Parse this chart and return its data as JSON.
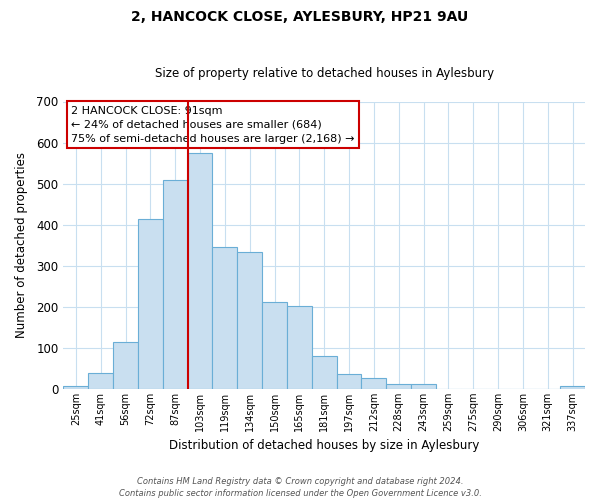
{
  "title": "2, HANCOCK CLOSE, AYLESBURY, HP21 9AU",
  "subtitle": "Size of property relative to detached houses in Aylesbury",
  "xlabel": "Distribution of detached houses by size in Aylesbury",
  "ylabel": "Number of detached properties",
  "bar_labels": [
    "25sqm",
    "41sqm",
    "56sqm",
    "72sqm",
    "87sqm",
    "103sqm",
    "119sqm",
    "134sqm",
    "150sqm",
    "165sqm",
    "181sqm",
    "197sqm",
    "212sqm",
    "228sqm",
    "243sqm",
    "259sqm",
    "275sqm",
    "290sqm",
    "306sqm",
    "321sqm",
    "337sqm"
  ],
  "bar_values": [
    8,
    38,
    113,
    415,
    510,
    575,
    345,
    333,
    212,
    202,
    80,
    37,
    26,
    13,
    13,
    0,
    0,
    0,
    0,
    0,
    6
  ],
  "bar_color": "#c9dff0",
  "bar_edge_color": "#6aaed6",
  "ylim": [
    0,
    700
  ],
  "yticks": [
    0,
    100,
    200,
    300,
    400,
    500,
    600,
    700
  ],
  "vline_x": 4.5,
  "vline_color": "#cc0000",
  "annotation_title": "2 HANCOCK CLOSE: 91sqm",
  "annotation_line1": "← 24% of detached houses are smaller (684)",
  "annotation_line2": "75% of semi-detached houses are larger (2,168) →",
  "annotation_box_facecolor": "#ffffff",
  "annotation_box_edgecolor": "#cc0000",
  "footer_line1": "Contains HM Land Registry data © Crown copyright and database right 2024.",
  "footer_line2": "Contains public sector information licensed under the Open Government Licence v3.0.",
  "bg_color": "#ffffff",
  "grid_color": "#c8dff0",
  "title_fontsize": 10,
  "subtitle_fontsize": 8.5
}
